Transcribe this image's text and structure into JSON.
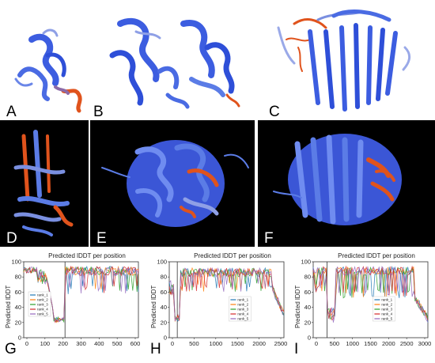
{
  "panel_letters": [
    "A",
    "B",
    "C",
    "D",
    "E",
    "F",
    "G",
    "H",
    "I"
  ],
  "colors": {
    "blue_high": "#2e4fd8",
    "blue_mid": "#5b7ce6",
    "blue_light": "#9aa9e8",
    "orange_low": "#e0531c",
    "black_bg": "#000000"
  },
  "plots": [
    {
      "title": "Predicted lDDT per position",
      "ylabel": "Predicted lDDT",
      "x_ticks": [
        "0",
        "100",
        "200",
        "300",
        "400",
        "500",
        "600"
      ],
      "y_ticks": [
        "0",
        "20",
        "40",
        "60",
        "80",
        "100"
      ],
      "legend": [
        "rank_1",
        "rank_2",
        "rank_3",
        "rank_4",
        "rank_5"
      ]
    },
    {
      "title": "Predicted lDDT per position",
      "ylabel": "Predicted lDDT",
      "x_ticks": [
        "0",
        "500",
        "1000",
        "1500",
        "2000",
        "2500"
      ],
      "y_ticks": [
        "0",
        "20",
        "40",
        "60",
        "80",
        "100"
      ],
      "legend": [
        "rank_1",
        "rank_2",
        "rank_3",
        "rank_4",
        "rank_5"
      ]
    },
    {
      "title": "Predicted lDDT per position",
      "ylabel": "Predicted lDDT",
      "x_ticks": [
        "0",
        "500",
        "1000",
        "1500",
        "2000",
        "2500",
        "3000"
      ],
      "y_ticks": [
        "0",
        "20",
        "40",
        "60",
        "80",
        "100"
      ],
      "legend": [
        "rank_1",
        "rank_2",
        "rank_3",
        "rank_4",
        "rank_5"
      ]
    }
  ],
  "series_colors": [
    "#1f77b4",
    "#ff7f0e",
    "#2ca02c",
    "#d62728",
    "#9467bd"
  ]
}
